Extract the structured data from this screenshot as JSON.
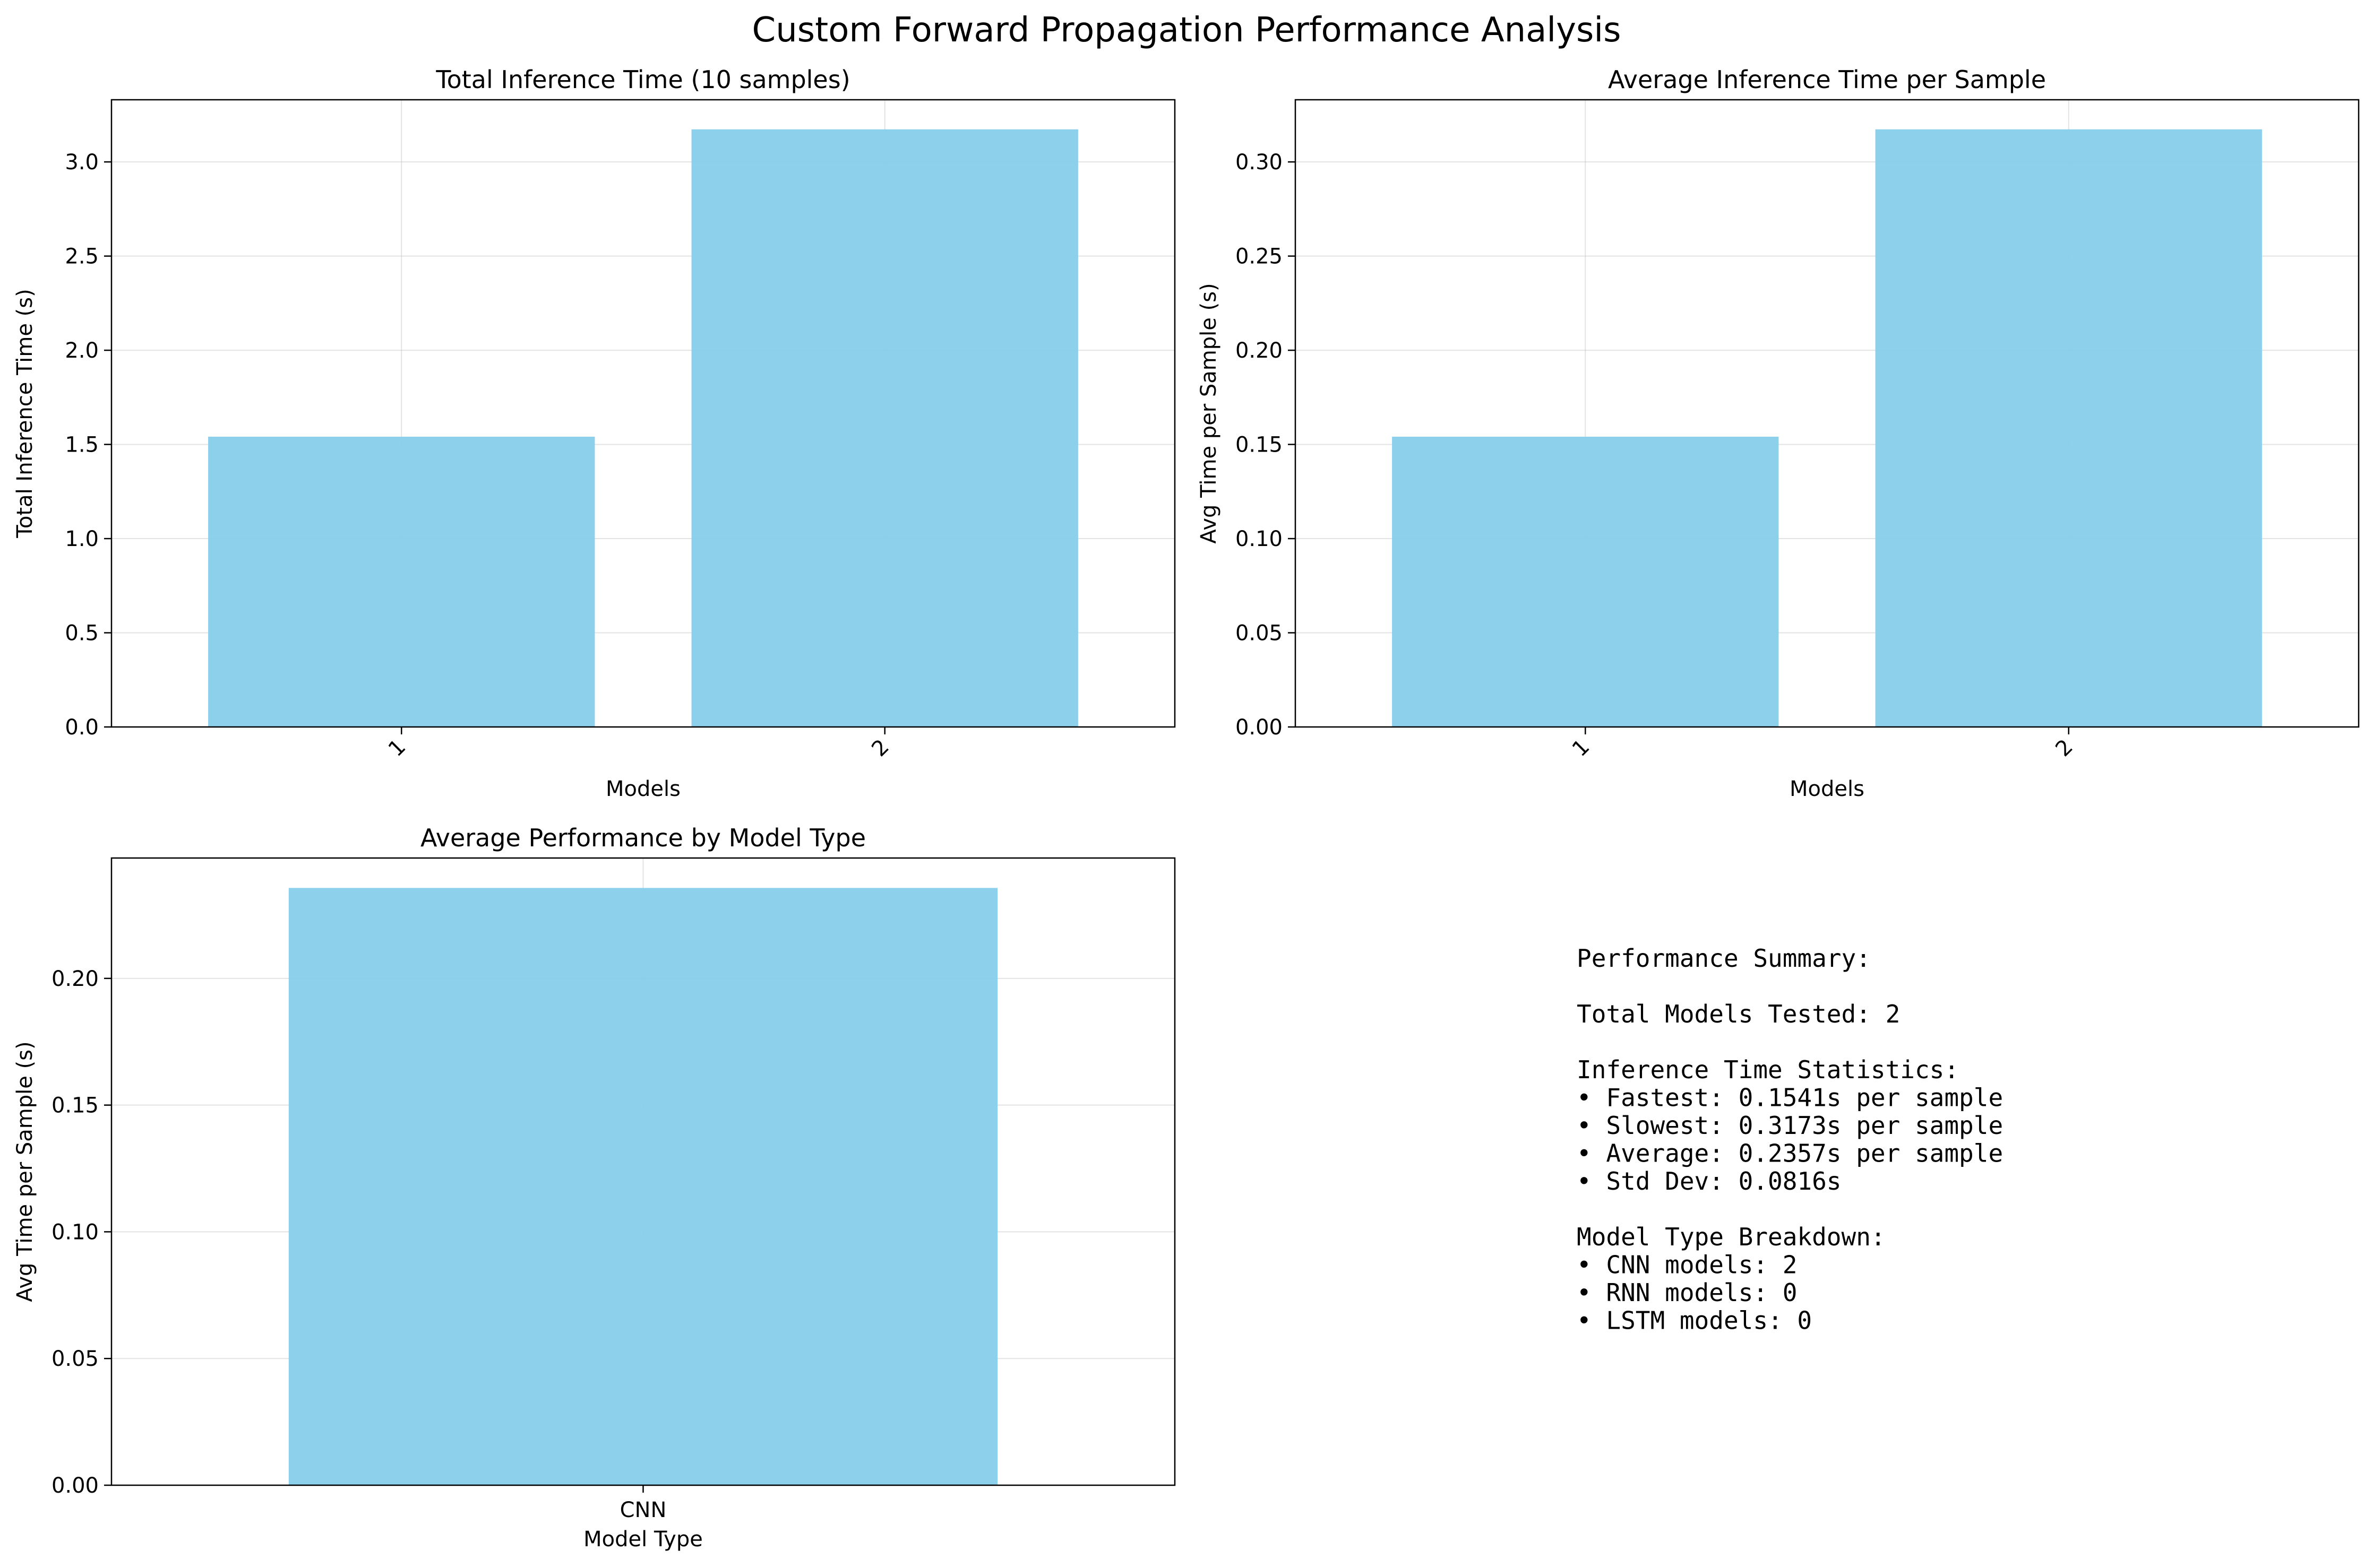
{
  "figure": {
    "suptitle": "Custom Forward Propagation Performance Analysis",
    "bar_color": "#87CEEB"
  },
  "chart_data": [
    {
      "type": "bar",
      "title": "Total Inference Time (10 samples)",
      "xlabel": "Models",
      "ylabel": "Total Inference Time (s)",
      "categories": [
        "1",
        "2"
      ],
      "values": [
        1.541,
        3.173
      ],
      "ylim": [
        0,
        3.33
      ],
      "yticks": [
        0.0,
        0.5,
        1.0,
        1.5,
        2.0,
        2.5,
        3.0
      ],
      "ytick_labels": [
        "0.0",
        "0.5",
        "1.0",
        "1.5",
        "2.0",
        "2.5",
        "3.0"
      ],
      "xtick_rotation": 45,
      "grid": true
    },
    {
      "type": "bar",
      "title": "Average Inference Time per Sample",
      "xlabel": "Models",
      "ylabel": "Avg Time per Sample (s)",
      "categories": [
        "1",
        "2"
      ],
      "values": [
        0.1541,
        0.3173
      ],
      "ylim": [
        0,
        0.333
      ],
      "yticks": [
        0.0,
        0.05,
        0.1,
        0.15,
        0.2,
        0.25,
        0.3
      ],
      "ytick_labels": [
        "0.00",
        "0.05",
        "0.10",
        "0.15",
        "0.20",
        "0.25",
        "0.30"
      ],
      "xtick_rotation": 45,
      "grid": true
    },
    {
      "type": "bar",
      "title": "Average Performance by Model Type",
      "xlabel": "Model Type",
      "ylabel": "Avg Time per Sample (s)",
      "categories": [
        "CNN"
      ],
      "values": [
        0.2357
      ],
      "ylim": [
        0,
        0.2475
      ],
      "yticks": [
        0.0,
        0.05,
        0.1,
        0.15,
        0.2
      ],
      "ytick_labels": [
        "0.00",
        "0.05",
        "0.10",
        "0.15",
        "0.20"
      ],
      "xtick_rotation": 0,
      "grid": true
    }
  ],
  "summary": {
    "lines": [
      "Performance Summary:",
      "",
      "Total Models Tested: 2",
      "",
      "Inference Time Statistics:",
      "• Fastest: 0.1541s per sample",
      "• Slowest: 0.3173s per sample",
      "• Average: 0.2357s per sample",
      "• Std Dev: 0.0816s",
      "",
      "Model Type Breakdown:",
      "• CNN models: 2",
      "• RNN models: 0",
      "• LSTM models: 0"
    ]
  }
}
